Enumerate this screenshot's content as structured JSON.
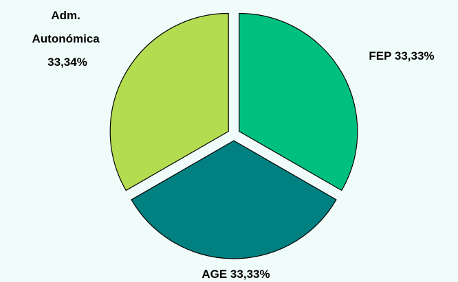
{
  "chart_data": {
    "type": "pie",
    "exploded": true,
    "start_angle_deg": 0,
    "direction": "clockwise",
    "slices": [
      {
        "label_lines": [
          "FEP 33,33%"
        ],
        "name": "FEP",
        "value": 33.33,
        "color": "#00c080"
      },
      {
        "label_lines": [
          "AGE 33,33%"
        ],
        "name": "AGE",
        "value": 33.33,
        "color": "#008080"
      },
      {
        "label_lines": [
          "Adm.",
          "Autonómica",
          "33,34%"
        ],
        "name": "Adm. Autonómica",
        "value": 33.34,
        "color": "#b4dc50"
      }
    ],
    "outline_color": "#000000",
    "background": "#f0fcfa"
  }
}
